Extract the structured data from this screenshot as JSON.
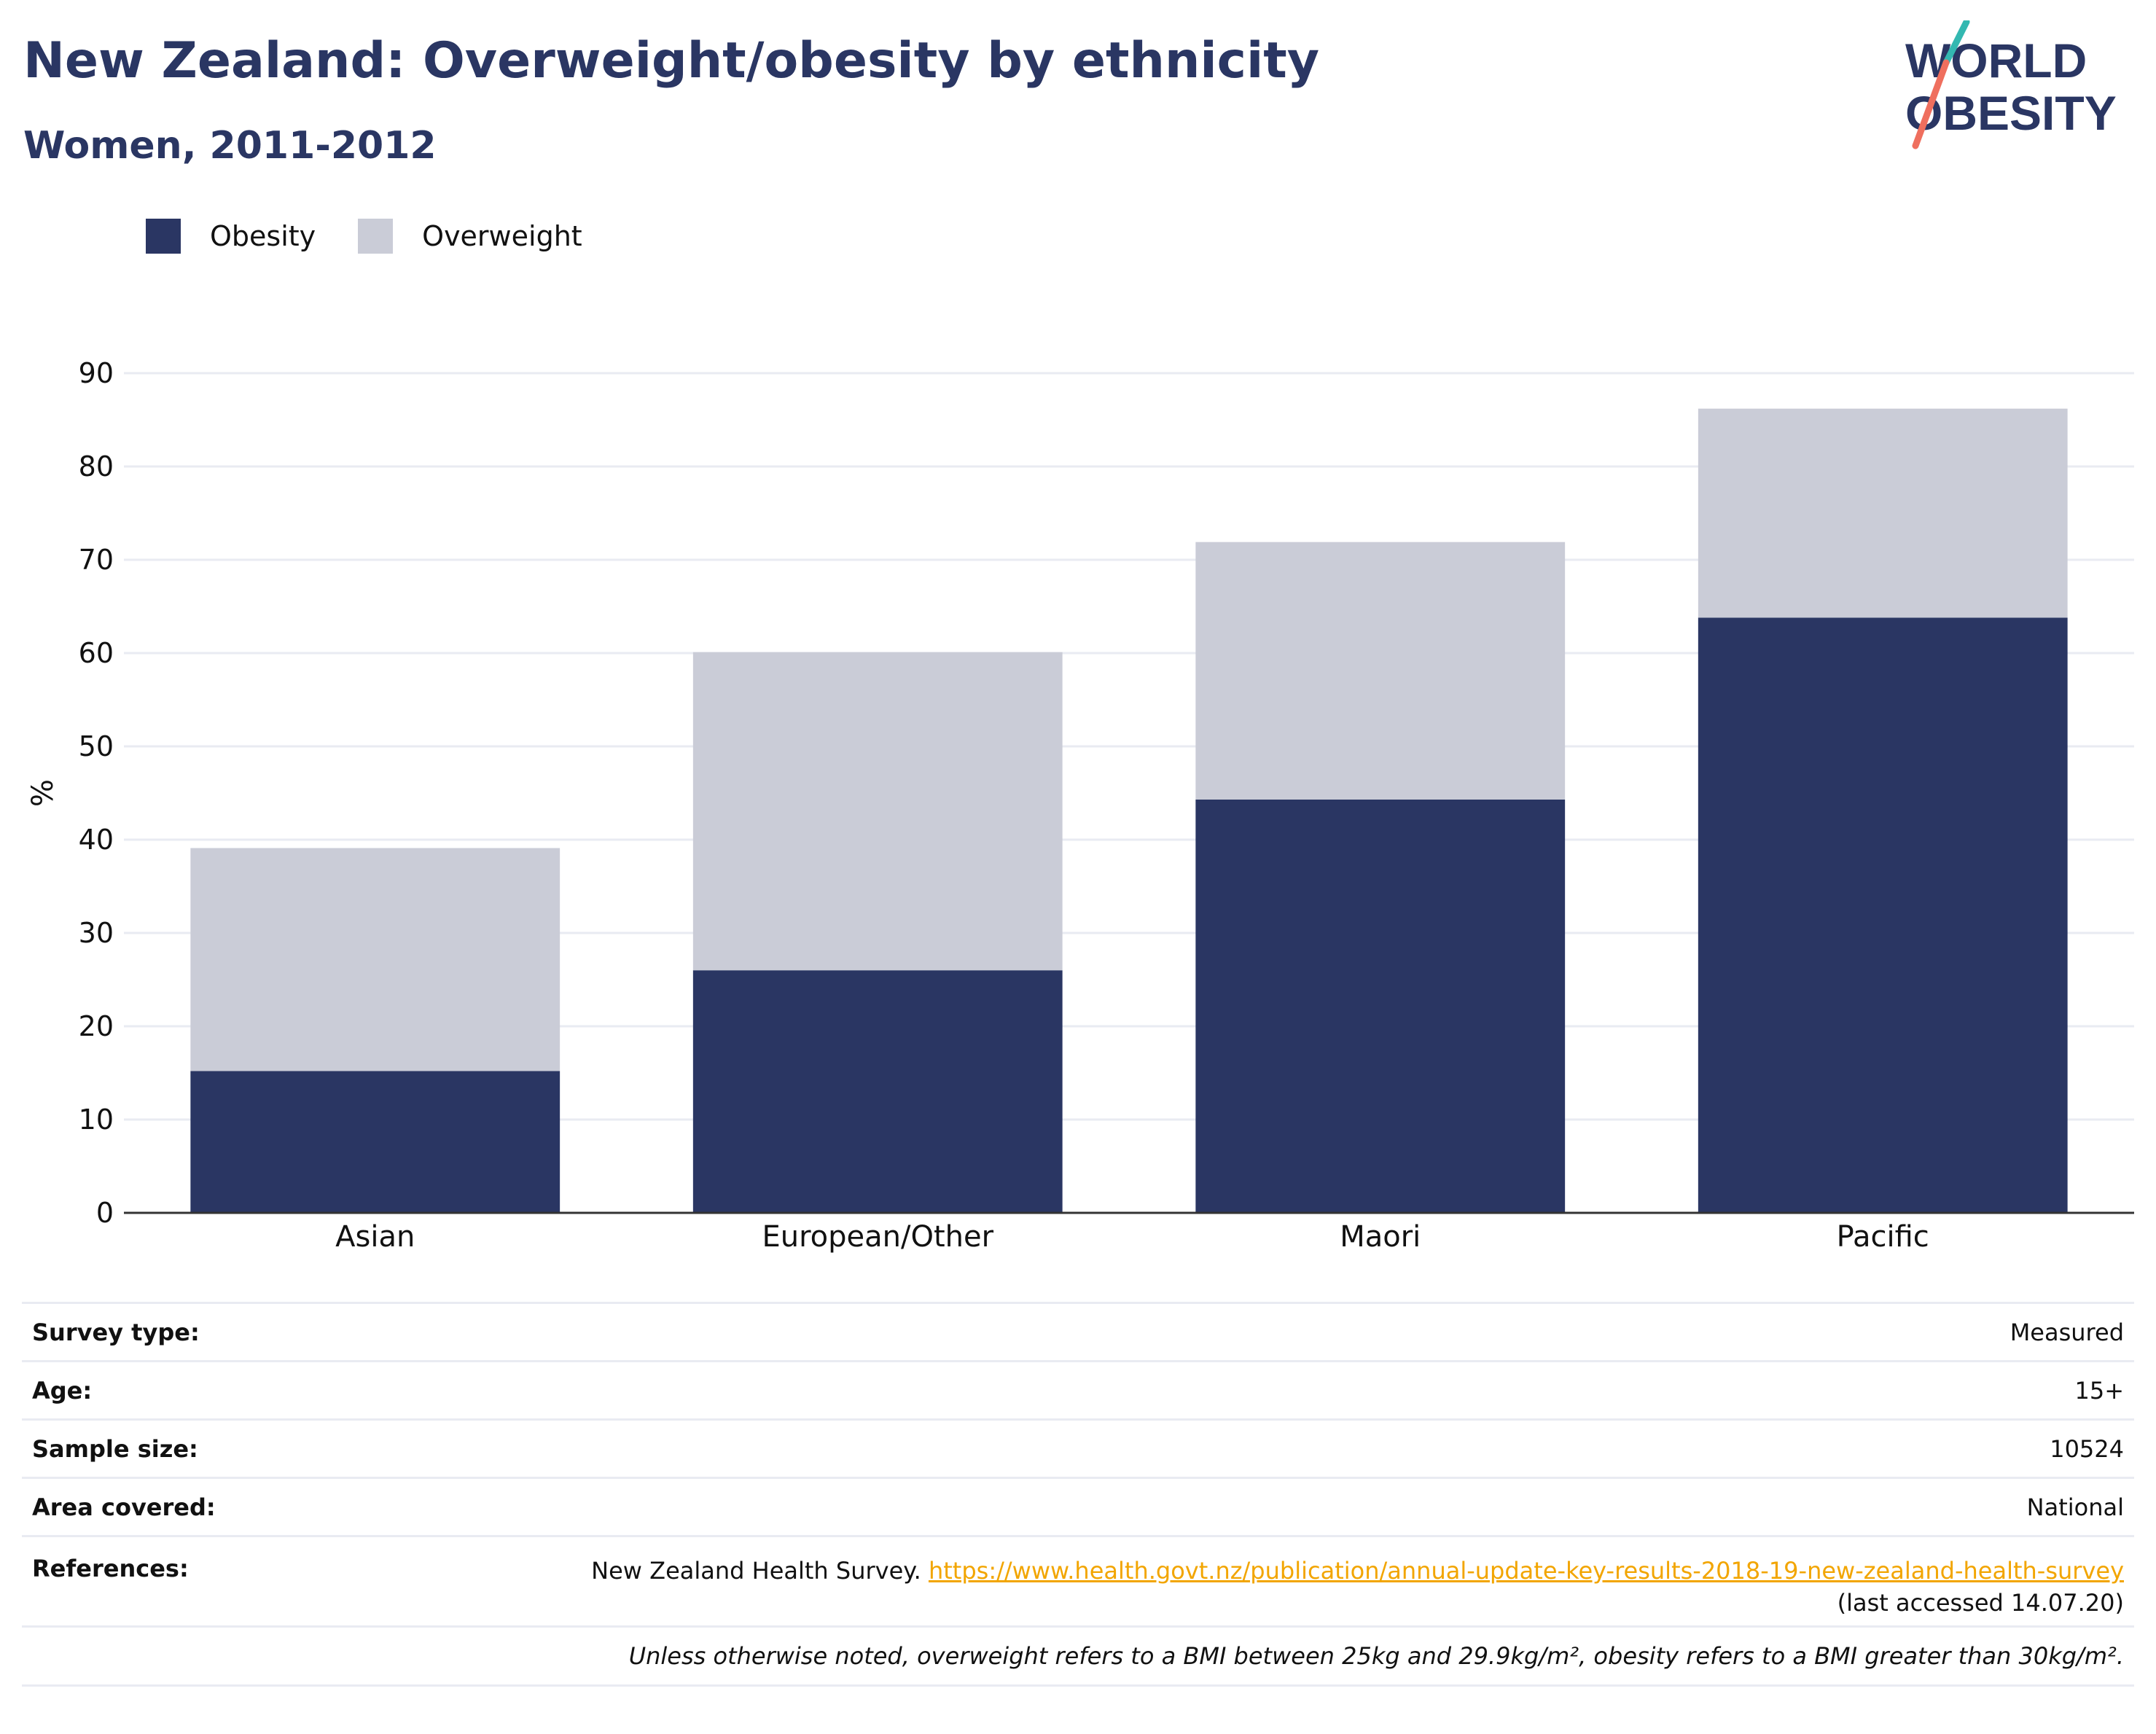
{
  "header": {
    "title": "New Zealand: Overweight/obesity by ethnicity",
    "subtitle": "Women, 2011-2012"
  },
  "logo": {
    "line1": "WORLD",
    "line2": "OBESITY",
    "colors": {
      "text": "#2a3663",
      "slash_teal": "#33b8b1",
      "slash_coral": "#ef6f5e"
    }
  },
  "legend": {
    "items": [
      {
        "label": "Obesity",
        "color": "#2a3663"
      },
      {
        "label": "Overweight",
        "color": "#caccd7"
      }
    ]
  },
  "chart_data": {
    "type": "bar",
    "stacked": true,
    "categories": [
      "Asian",
      "European/Other",
      "Maori",
      "Pacific"
    ],
    "series": [
      {
        "name": "Obesity",
        "values": [
          15.2,
          26,
          44.3,
          63.8
        ],
        "color": "#2a3663"
      },
      {
        "name": "Overweight",
        "values": [
          23.9,
          34.1,
          27.6,
          22.4
        ],
        "color": "#caccd7"
      }
    ],
    "ylabel": "%",
    "xlabel": "",
    "ylim": [
      0,
      90
    ],
    "yticks": [
      0,
      10,
      20,
      30,
      40,
      50,
      60,
      70,
      80,
      90
    ],
    "grid": true,
    "legend_position": "top-left"
  },
  "info": {
    "survey_type": {
      "label": "Survey type:",
      "value": "Measured"
    },
    "age": {
      "label": "Age:",
      "value": "15+"
    },
    "sample_size": {
      "label": "Sample size:",
      "value": "10524"
    },
    "area": {
      "label": "Area covered:",
      "value": "National"
    },
    "references": {
      "label": "References:",
      "text": "New Zealand Health Survey.",
      "link": "https://www.health.govt.nz/publication/annual-update-key-results-2018-19-new-zealand-health-survey",
      "accessed": "(last accessed 14.07.20)"
    },
    "note": "Unless otherwise noted, overweight refers to a BMI between 25kg and 29.9kg/m², obesity refers to a BMI greater than 30kg/m²."
  }
}
